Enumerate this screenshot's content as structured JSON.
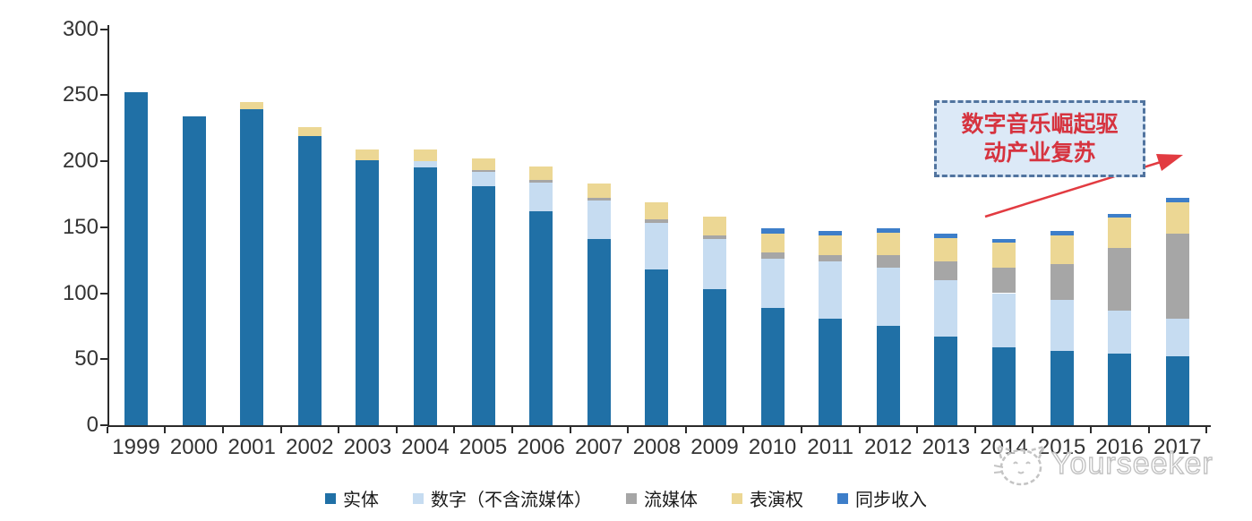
{
  "chart_data": {
    "type": "bar",
    "stacked": true,
    "title": "",
    "xlabel": "",
    "ylabel": "",
    "categories": [
      "1999",
      "2000",
      "2001",
      "2002",
      "2003",
      "2004",
      "2005",
      "2006",
      "2007",
      "2008",
      "2009",
      "2010",
      "2011",
      "2012",
      "2013",
      "2014",
      "2015",
      "2016",
      "2017"
    ],
    "series": [
      {
        "name": "实体",
        "key": "physical",
        "color": "#2070a6",
        "values": [
          252,
          234,
          239,
          219,
          201,
          195,
          181,
          162,
          141,
          118,
          103,
          89,
          81,
          75,
          67,
          59,
          56,
          54,
          52
        ]
      },
      {
        "name": "数字（不含流媒体）",
        "key": "digital-excl-streaming",
        "color": "#c6dcf1",
        "values": [
          0,
          0,
          0,
          0,
          0,
          5,
          11,
          22,
          29,
          35,
          38,
          37,
          43,
          44,
          43,
          41,
          39,
          33,
          29
        ]
      },
      {
        "name": "流媒体",
        "key": "streaming",
        "color": "#a6a6a6",
        "values": [
          0,
          0,
          0,
          0,
          0,
          0,
          1,
          2,
          2,
          3,
          3,
          5,
          5,
          10,
          14,
          19,
          27,
          47,
          64
        ]
      },
      {
        "name": "表演权",
        "key": "performance-rights",
        "color": "#ecd794",
        "values": [
          0,
          0,
          6,
          7,
          8,
          9,
          9,
          10,
          11,
          13,
          14,
          14,
          15,
          17,
          18,
          19,
          22,
          23,
          24
        ]
      },
      {
        "name": "同步收入",
        "key": "sync-revenue",
        "color": "#3d7ec9",
        "values": [
          0,
          0,
          0,
          0,
          0,
          0,
          0,
          0,
          0,
          0,
          0,
          4,
          3,
          3,
          3,
          3,
          3,
          3,
          3
        ]
      }
    ],
    "ylim": [
      0,
      300
    ],
    "yticks": [
      0,
      50,
      100,
      150,
      200,
      250,
      300
    ],
    "grid": false,
    "legend_position": "bottom"
  },
  "annotation": {
    "line1": "数字音乐崛起驱",
    "line2": "动产业复苏",
    "text_color": "#d6333f",
    "box_border_color": "#51749f",
    "box_bg_color": "#dce9f7",
    "arrow_color": "#e23b41"
  },
  "watermark": {
    "text": "Yourseeker"
  }
}
